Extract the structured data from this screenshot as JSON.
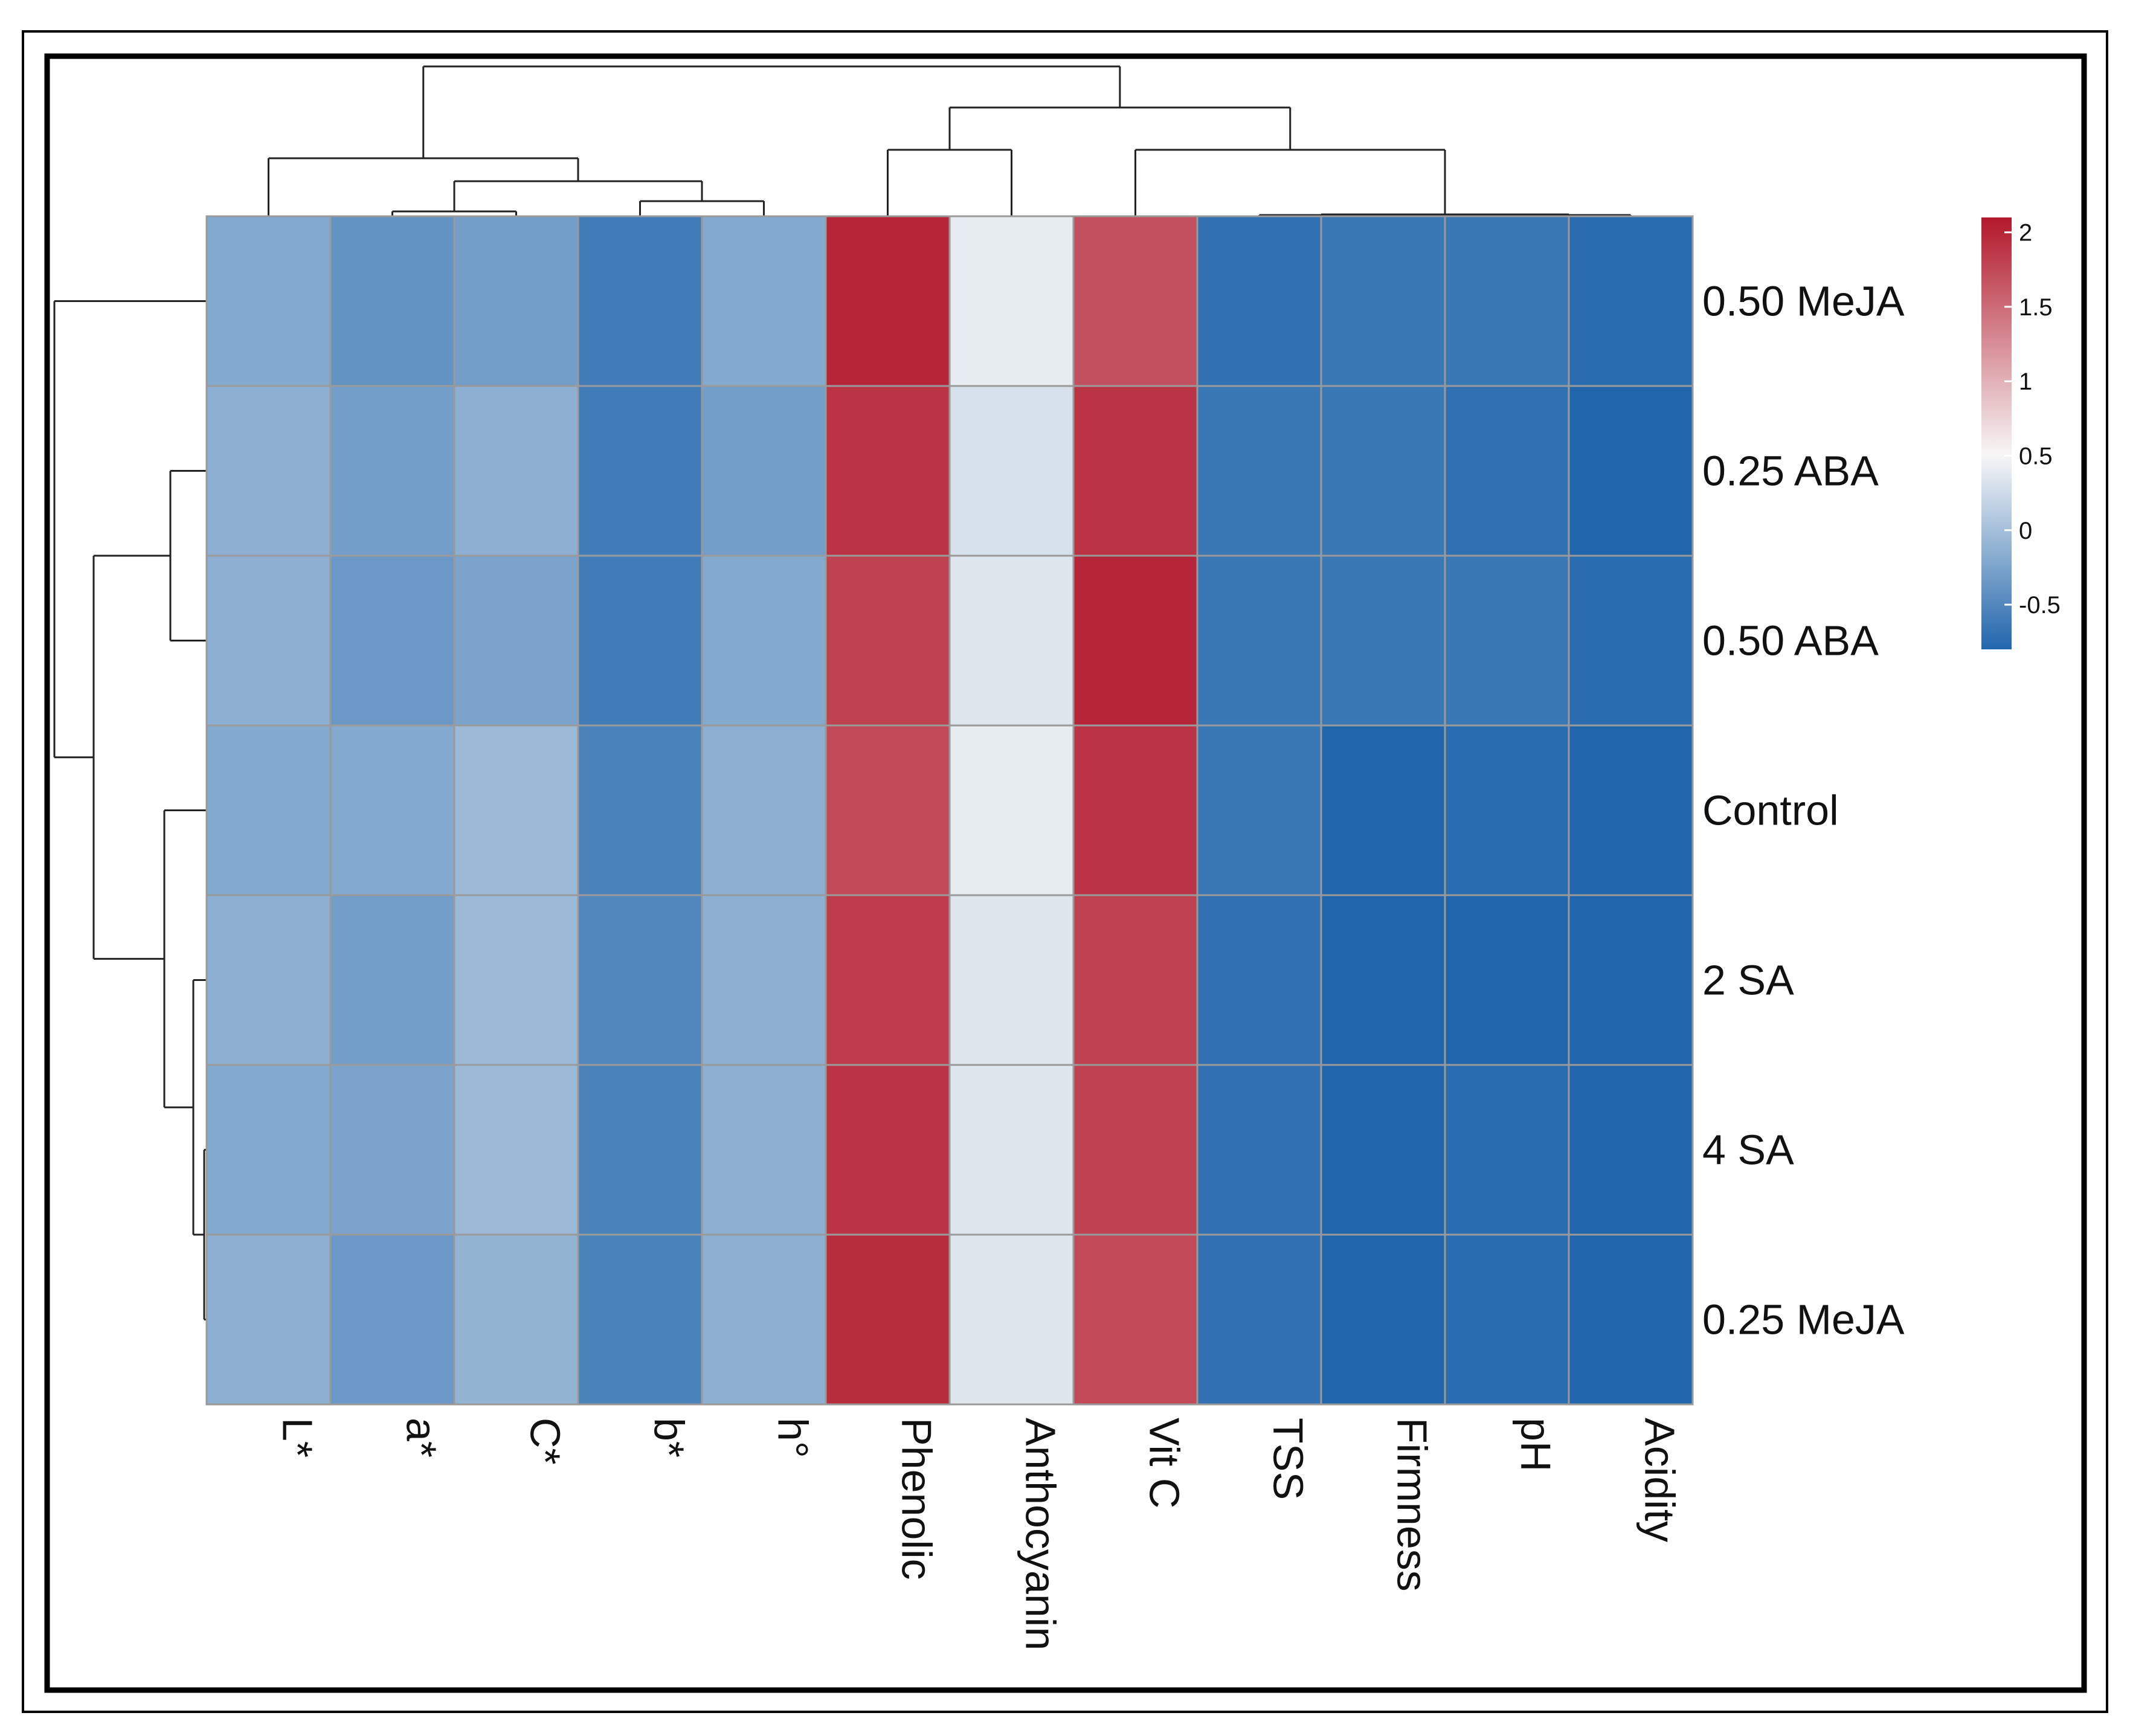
{
  "chart_data": {
    "type": "heatmap",
    "title": "",
    "xlabel": "",
    "ylabel": "",
    "columns": [
      "L*",
      "a*",
      "C*",
      "b*",
      "h°",
      "Phenolic",
      "Anthocyanin",
      "Vit C",
      "TSS",
      "Firmness",
      "pH",
      "Acidity"
    ],
    "rows": [
      "0.50 MeJA",
      "0.25 ABA",
      "0.50 ABA",
      "Control",
      "2 SA",
      "4 SA",
      "0.25 MeJA"
    ],
    "values": [
      [
        -0.2,
        -0.4,
        -0.3,
        -0.6,
        -0.2,
        2.0,
        0.4,
        1.7,
        -0.7,
        -0.65,
        -0.65,
        -0.75
      ],
      [
        -0.15,
        -0.3,
        -0.15,
        -0.6,
        -0.3,
        1.9,
        0.3,
        1.9,
        -0.65,
        -0.65,
        -0.7,
        -0.8
      ],
      [
        -0.15,
        -0.35,
        -0.25,
        -0.6,
        -0.2,
        1.8,
        0.35,
        2.0,
        -0.65,
        -0.65,
        -0.65,
        -0.75
      ],
      [
        -0.2,
        -0.2,
        -0.05,
        -0.55,
        -0.15,
        1.75,
        0.4,
        1.9,
        -0.65,
        -0.8,
        -0.75,
        -0.8
      ],
      [
        -0.15,
        -0.3,
        -0.05,
        -0.5,
        -0.15,
        1.85,
        0.35,
        1.8,
        -0.7,
        -0.8,
        -0.8,
        -0.8
      ],
      [
        -0.2,
        -0.25,
        -0.05,
        -0.55,
        -0.15,
        1.9,
        0.35,
        1.8,
        -0.7,
        -0.8,
        -0.75,
        -0.8
      ],
      [
        -0.15,
        -0.35,
        -0.1,
        -0.55,
        -0.15,
        1.95,
        0.35,
        1.75,
        -0.7,
        -0.8,
        -0.75,
        -0.8
      ]
    ],
    "color_scale": {
      "min": -0.8,
      "max": 2.1,
      "low_color": "#2166ac",
      "mid_color": "#f7f7f7",
      "high_color": "#b2182b",
      "ticks": [
        "2",
        "1.5",
        "1",
        "0.5",
        "0",
        "-0.5"
      ]
    },
    "legend_placement": "right",
    "column_dendrogram": true,
    "row_dendrogram": true
  }
}
